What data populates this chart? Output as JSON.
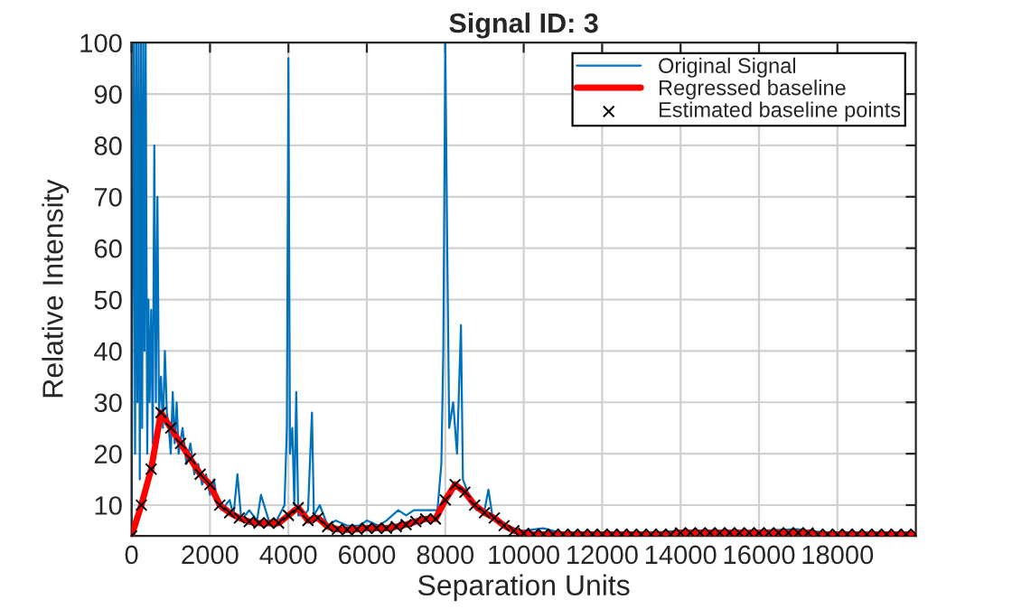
{
  "chart_data": {
    "type": "line",
    "title": "Signal ID: 3",
    "xlabel": "Separation Units",
    "ylabel": "Relative Intensity",
    "xlim": [
      0,
      20000
    ],
    "xticks": [
      0,
      2000,
      4000,
      6000,
      8000,
      10000,
      12000,
      14000,
      16000,
      18000
    ],
    "ylim": [
      4,
      100
    ],
    "yticks": [
      10,
      20,
      30,
      40,
      50,
      60,
      70,
      80,
      90,
      100
    ],
    "grid": true,
    "legend": "top right",
    "series": [
      {
        "name": "Original Signal",
        "color": "#0072bd",
        "marker": "none",
        "x": [
          0,
          30,
          60,
          90,
          120,
          150,
          180,
          210,
          240,
          270,
          300,
          330,
          360,
          400,
          430,
          460,
          500,
          540,
          580,
          620,
          660,
          700,
          750,
          800,
          850,
          900,
          950,
          1000,
          1050,
          1100,
          1150,
          1200,
          1300,
          1400,
          1500,
          1600,
          1700,
          1800,
          1900,
          2000,
          2100,
          2200,
          2300,
          2500,
          2600,
          2700,
          2800,
          3000,
          3200,
          3300,
          3500,
          3700,
          3900,
          3960,
          4000,
          4040,
          4100,
          4150,
          4200,
          4250,
          4400,
          4500,
          4600,
          4650,
          4800,
          5000,
          5200,
          5500,
          5800,
          6000,
          6300,
          6500,
          6800,
          7000,
          7200,
          7500,
          7800,
          7900,
          7950,
          8000,
          8050,
          8100,
          8200,
          8300,
          8400,
          8450,
          8600,
          8800,
          9000,
          9100,
          9200,
          9400,
          9600,
          9800,
          10000,
          10500,
          11000,
          12000,
          13000,
          14000,
          15000,
          16000,
          17000,
          17200,
          18000,
          19000,
          20000
        ],
        "values": [
          4,
          60,
          100,
          20,
          100,
          30,
          100,
          15,
          100,
          25,
          100,
          40,
          100,
          20,
          50,
          30,
          48,
          22,
          80,
          30,
          70,
          28,
          35,
          25,
          40,
          28,
          25,
          20,
          32,
          22,
          30,
          20,
          25,
          18,
          22,
          16,
          18,
          14,
          16,
          12,
          15,
          10,
          9,
          11,
          8,
          16,
          7,
          9,
          7,
          12,
          7,
          7,
          10,
          25,
          97,
          20,
          25,
          10,
          32,
          8,
          8,
          9,
          28,
          8,
          10,
          6,
          7,
          6,
          6,
          7,
          6,
          7,
          9,
          8,
          9,
          9,
          9,
          18,
          40,
          100,
          60,
          25,
          30,
          20,
          45,
          15,
          12,
          9,
          9,
          13,
          8,
          7,
          6,
          5,
          5,
          5.5,
          4.5,
          4.5,
          4.5,
          5,
          5,
          5,
          5.3,
          5,
          4.5,
          4.5,
          4.5
        ]
      },
      {
        "name": "Regressed baseline",
        "color": "#ff0000",
        "marker": "none",
        "x": [
          0,
          250,
          500,
          750,
          1000,
          1250,
          1500,
          1750,
          2000,
          2250,
          2500,
          2750,
          3000,
          3250,
          3500,
          3750,
          4000,
          4250,
          4500,
          4750,
          5000,
          5250,
          5500,
          5750,
          6000,
          6250,
          6500,
          6750,
          7000,
          7250,
          7500,
          7750,
          8000,
          8250,
          8500,
          8750,
          9000,
          9250,
          9500,
          9750,
          10000,
          10250,
          10500,
          10750,
          11000,
          11250,
          11500,
          11750,
          12000,
          12250,
          12500,
          12750,
          13000,
          13250,
          13500,
          13750,
          14000,
          14250,
          14500,
          14750,
          15000,
          15250,
          15500,
          15750,
          16000,
          16250,
          16500,
          16750,
          17000,
          17250,
          17500,
          17750,
          18000,
          18250,
          18500,
          18750,
          19000,
          19250,
          19500,
          19750,
          20000
        ],
        "values": [
          4,
          10,
          17,
          28,
          25,
          22,
          19,
          16,
          14,
          10,
          8.5,
          7.5,
          6.8,
          6.5,
          6.5,
          6.5,
          8,
          9.5,
          7,
          7.5,
          5.8,
          5.3,
          5.2,
          5.3,
          5.5,
          5.5,
          5.5,
          5.8,
          6.2,
          6.8,
          7.3,
          7.3,
          11,
          14,
          12.5,
          10,
          8.5,
          7.5,
          6,
          5,
          4.5,
          4.3,
          4.3,
          4.3,
          4.3,
          4.3,
          4.3,
          4.3,
          4.3,
          4.3,
          4.3,
          4.3,
          4.3,
          4.3,
          4.3,
          4.3,
          4.6,
          4.6,
          4.6,
          4.6,
          4.6,
          4.6,
          4.6,
          4.6,
          4.6,
          4.6,
          4.6,
          4.6,
          4.6,
          4.6,
          4.3,
          4.3,
          4.3,
          4.3,
          4.3,
          4.3,
          4.3,
          4.3,
          4.3,
          4.3,
          4.3
        ]
      },
      {
        "name": "Estimated baseline points",
        "type": "scatter",
        "color": "#000000",
        "marker": "cross",
        "x": [
          0,
          250,
          500,
          750,
          1000,
          1250,
          1500,
          1750,
          2000,
          2250,
          2500,
          2750,
          3000,
          3250,
          3500,
          3750,
          4000,
          4250,
          4500,
          4750,
          5000,
          5250,
          5500,
          5750,
          6000,
          6250,
          6500,
          6750,
          7000,
          7250,
          7500,
          7750,
          8000,
          8250,
          8500,
          8750,
          9000,
          9250,
          9500,
          9750,
          10000,
          10250,
          10500,
          10750,
          11000,
          11250,
          11500,
          11750,
          12000,
          12250,
          12500,
          12750,
          13000,
          13250,
          13500,
          13750,
          14000,
          14250,
          14500,
          14750,
          15000,
          15250,
          15500,
          15750,
          16000,
          16250,
          16500,
          16750,
          17000,
          17250,
          17500,
          17750,
          18000,
          18250,
          18500,
          18750,
          19000,
          19250,
          19500,
          19750,
          20000
        ],
        "values": [
          4,
          10,
          17,
          28,
          25,
          22,
          19,
          16,
          14,
          10,
          8.5,
          7.5,
          6.8,
          6.5,
          6.5,
          6.5,
          8,
          9.5,
          7,
          7.5,
          5.8,
          5.3,
          5.2,
          5.3,
          5.5,
          5.5,
          5.5,
          5.8,
          6.2,
          6.8,
          7.3,
          7.3,
          11,
          14,
          12.5,
          10,
          8.5,
          7.5,
          6,
          5,
          4.5,
          4.3,
          4.3,
          4.3,
          4.3,
          4.3,
          4.3,
          4.3,
          4.3,
          4.3,
          4.3,
          4.3,
          4.3,
          4.3,
          4.3,
          4.3,
          4.6,
          4.6,
          4.6,
          4.6,
          4.6,
          4.6,
          4.6,
          4.6,
          4.6,
          4.6,
          4.6,
          4.6,
          4.6,
          4.6,
          4.3,
          4.3,
          4.3,
          4.3,
          4.3,
          4.3,
          4.3,
          4.3,
          4.3,
          4.3,
          4.3
        ]
      }
    ]
  }
}
